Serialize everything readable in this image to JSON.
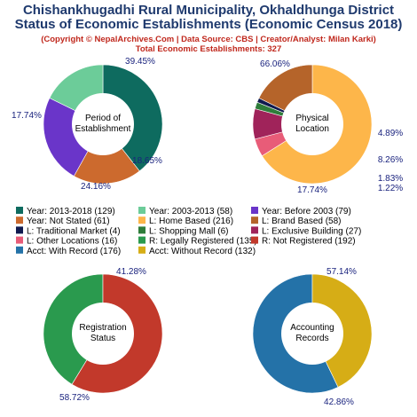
{
  "header": {
    "title_line1": "Chishankhugadhi Rural Municipality, Okhaldhunga District",
    "title_line2": "Status of Economic Establishments (Economic Census 2018)",
    "credit": "(Copyright © NepalArchives.Com | Data Source: CBS | Creator/Analyst: Milan Karki)",
    "total": "Total Economic Establishments: 327"
  },
  "chart_data": [
    {
      "type": "pie",
      "title": "Period of\nEstablishment",
      "slices": [
        {
          "label": "Year: 2013-2018",
          "value": 129,
          "pct": "39.45%",
          "color": "#0e6b5f"
        },
        {
          "label": "Year: Not Stated",
          "value": 61,
          "pct": "18.65%",
          "color": "#cc6a2e"
        },
        {
          "label": "Year: Before 2003",
          "value": 79,
          "pct": "24.16%",
          "color": "#6a35c9"
        },
        {
          "label": "Year: 2003-2013",
          "value": 58,
          "pct": "17.74%",
          "color": "#6ccc99"
        }
      ]
    },
    {
      "type": "pie",
      "title": "Physical\nLocation",
      "slices": [
        {
          "label": "L: Home Based",
          "value": 216,
          "pct": "66.06%",
          "color": "#fdb64a"
        },
        {
          "label": "L: Other Locations",
          "value": 16,
          "pct": "4.89%",
          "color": "#e85c78"
        },
        {
          "label": "L: Exclusive Building",
          "value": 27,
          "pct": "8.26%",
          "color": "#a0235a"
        },
        {
          "label": "L: Shopping Mall",
          "value": 6,
          "pct": "1.83%",
          "color": "#2e7d3a"
        },
        {
          "label": "L: Traditional Market",
          "value": 4,
          "pct": "1.22%",
          "color": "#101a4f"
        },
        {
          "label": "L: Brand Based",
          "value": 58,
          "pct": "17.74%",
          "color": "#b5642a"
        }
      ]
    },
    {
      "type": "pie",
      "title": "Registration\nStatus",
      "slices": [
        {
          "label": "R: Legally Registered",
          "value": 135,
          "pct": "41.28%",
          "color": "#2a9a4e"
        },
        {
          "label": "R: Not Registered",
          "value": 192,
          "pct": "58.72%",
          "color": "#c2392b"
        }
      ]
    },
    {
      "type": "pie",
      "title": "Accounting\nRecords",
      "slices": [
        {
          "label": "Acct: With Record",
          "value": 176,
          "pct": "57.14%",
          "color": "#2472a8"
        },
        {
          "label": "Acct: Without Record",
          "value": 132,
          "pct": "42.86%",
          "color": "#d6ad16"
        }
      ]
    }
  ],
  "legend": [
    {
      "text": "Year: 2013-2018 (129)",
      "color": "#0e6b5f"
    },
    {
      "text": "Year: 2003-2013 (58)",
      "color": "#6ccc99"
    },
    {
      "text": "Year: Before 2003 (79)",
      "color": "#6a35c9"
    },
    {
      "text": "Year: Not Stated (61)",
      "color": "#cc6a2e"
    },
    {
      "text": "L: Home Based (216)",
      "color": "#fdb64a"
    },
    {
      "text": "L: Brand Based (58)",
      "color": "#b5642a"
    },
    {
      "text": "L: Traditional Market (4)",
      "color": "#101a4f"
    },
    {
      "text": "L: Shopping Mall (6)",
      "color": "#2e7d3a"
    },
    {
      "text": "L: Exclusive Building (27)",
      "color": "#a0235a"
    },
    {
      "text": "L: Other Locations (16)",
      "color": "#e85c78"
    },
    {
      "text": "R: Legally Registered (135)",
      "color": "#2a9a4e"
    },
    {
      "text": "R: Not Registered (192)",
      "color": "#c2392b"
    },
    {
      "text": "Acct: With Record (176)",
      "color": "#2472a8"
    },
    {
      "text": "Acct: Without Record (132)",
      "color": "#d6ad16"
    }
  ]
}
